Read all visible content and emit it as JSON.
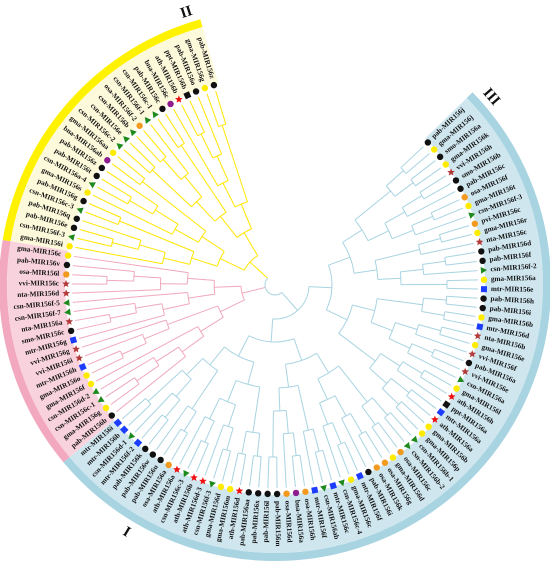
{
  "figure": {
    "title": "",
    "type": "circular phylogenetic tree",
    "groups": [
      {
        "id": "I",
        "label": "I",
        "ring_color": "#a8d4e2",
        "branch_color": "#a8d4e2",
        "bg_color": "#cfe6ef"
      },
      {
        "id": "II",
        "label": "II",
        "ring_color": "#f2a9bf",
        "branch_color": "#f0a8bc",
        "bg_color": "#f8d3de"
      },
      {
        "id": "III",
        "label": "III",
        "ring_color": "#fff200",
        "branch_color": "#ffe600",
        "bg_color": "#fdfadb"
      }
    ],
    "marker_legend": {
      "pab": {
        "shape": "circle",
        "color": "#111111"
      },
      "gma": {
        "shape": "circle",
        "color": "#ffeb00"
      },
      "osa": {
        "shape": "circle",
        "color": "#f29a1f"
      },
      "ath": {
        "shape": "star",
        "color": "#ee1111"
      },
      "csn": {
        "shape": "triangle",
        "color": "#1e8a1e"
      },
      "mtr": {
        "shape": "square",
        "color": "#1c3dff"
      },
      "bna": {
        "shape": "circle",
        "color": "#8e1c8e"
      },
      "vvi": {
        "shape": "star",
        "color": "#b23a3a"
      },
      "nta": {
        "shape": "star",
        "color": "#b23a3a"
      },
      "ppt": {
        "shape": "square",
        "color": "#111111"
      },
      "smo": {
        "shape": "circle",
        "color": "#111111"
      },
      "pvi": {
        "shape": "circle",
        "color": "#f29a1f"
      }
    },
    "leaves": [
      {
        "label": "pab-MIR156j",
        "group": "I"
      },
      {
        "label": "gma-MIR156j",
        "group": "I"
      },
      {
        "label": "smo-MIR156a",
        "group": "I"
      },
      {
        "label": "gma-MIR156k",
        "group": "I"
      },
      {
        "label": "vvi-MIR156h",
        "group": "I"
      },
      {
        "label": "smo-MIR156b",
        "group": "I"
      },
      {
        "label": "pab-MIR156c",
        "group": "I"
      },
      {
        "label": "osa-MIR156f",
        "group": "I"
      },
      {
        "label": "gma-MIR156t",
        "group": "I"
      },
      {
        "label": "csn-MIR156f-3",
        "group": "I"
      },
      {
        "label": "pvi-MIR156c",
        "group": "I"
      },
      {
        "label": "gma-MIR156r",
        "group": "I"
      },
      {
        "label": "nta-MIR156c",
        "group": "I"
      },
      {
        "label": "pab-MIR156d",
        "group": "I"
      },
      {
        "label": "pab-MIR156f",
        "group": "I"
      },
      {
        "label": "csn-MIR156f-2",
        "group": "I"
      },
      {
        "label": "gma-MIR156a",
        "group": "I"
      },
      {
        "label": "mtr-MIR156e",
        "group": "I"
      },
      {
        "label": "pab-MIR156h",
        "group": "I"
      },
      {
        "label": "pab-MIR156i",
        "group": "I"
      },
      {
        "label": "gma-MIR156b",
        "group": "I"
      },
      {
        "label": "mtr-MIR156d",
        "group": "I"
      },
      {
        "label": "nta-MIR156b",
        "group": "I"
      },
      {
        "label": "gma-MIR156e",
        "group": "I"
      },
      {
        "label": "vvi-MIR156f",
        "group": "I"
      },
      {
        "label": "pab-MIR156a",
        "group": "I"
      },
      {
        "label": "vvi-MIR156e",
        "group": "I"
      },
      {
        "label": "csn-MIR156a",
        "group": "I"
      },
      {
        "label": "gma-MIR156l",
        "group": "I"
      },
      {
        "label": "ath-MIR156h",
        "group": "I"
      },
      {
        "label": "ppt-MIR156a",
        "group": "I"
      },
      {
        "label": "mtr-MIR156a",
        "group": "I"
      },
      {
        "label": "ath-MIR156a",
        "group": "I"
      },
      {
        "label": "gma-MIR156b",
        "group": "I"
      },
      {
        "label": "gma-MIR156p",
        "group": "I"
      },
      {
        "label": "csn-MIR156b-1",
        "group": "I"
      },
      {
        "label": "csn-MIR156b-2",
        "group": "I"
      },
      {
        "label": "osa-MIR156c",
        "group": "I"
      },
      {
        "label": "gma-MIR156d",
        "group": "I"
      },
      {
        "label": "osa-MIR156g",
        "group": "I"
      },
      {
        "label": "osa-MIR156k",
        "group": "I"
      },
      {
        "label": "pab-MIR156i",
        "group": "I"
      },
      {
        "label": "mtr-MIR156f",
        "group": "I"
      },
      {
        "label": "gma-MIR156c",
        "group": "I"
      },
      {
        "label": "csn-MIR156c-4",
        "group": "I"
      },
      {
        "label": "mtr-MIR156c",
        "group": "I"
      },
      {
        "label": "csn-MIR156ab",
        "group": "I"
      },
      {
        "label": "mtr-MIR156f",
        "group": "I"
      },
      {
        "label": "osa-MIR156h",
        "group": "I"
      },
      {
        "label": "bna-MIR156a",
        "group": "I"
      },
      {
        "label": "osa-MIR156d",
        "group": "I"
      },
      {
        "label": "pab-MIR156m",
        "group": "I"
      },
      {
        "label": "pab-MIR156l",
        "group": "I"
      },
      {
        "label": "pab-MIR156x",
        "group": "I"
      },
      {
        "label": "pab-MIR156aa",
        "group": "I"
      },
      {
        "label": "ath-MIR156d",
        "group": "I"
      },
      {
        "label": "gma-MIR156m",
        "group": "I"
      },
      {
        "label": "gma-MIR156d",
        "group": "I"
      },
      {
        "label": "csn-MIR156f-3",
        "group": "I"
      },
      {
        "label": "ath-MIR156d-3",
        "group": "I"
      },
      {
        "label": "ath-MIR156b",
        "group": "I"
      },
      {
        "label": "csn-MIR156c-3",
        "group": "I"
      },
      {
        "label": "ath-MIR156a",
        "group": "I"
      },
      {
        "label": "osa-MIR156a",
        "group": "I"
      },
      {
        "label": "pab-MIR156u",
        "group": "I"
      },
      {
        "label": "pab-MIR156w",
        "group": "I"
      },
      {
        "label": "pab-MIR156k",
        "group": "I"
      },
      {
        "label": "mtr-MIR156f-2",
        "group": "I"
      },
      {
        "label": "csn-MIR156d-1",
        "group": "I"
      },
      {
        "label": "mtr-MIR156b",
        "group": "I"
      },
      {
        "label": "mtr-MIR156i",
        "group": "I"
      },
      {
        "label": "pab-MIR156b",
        "group": "II"
      },
      {
        "label": "gma-MIR156g",
        "group": "II"
      },
      {
        "label": "csn-MIR156c-1",
        "group": "II"
      },
      {
        "label": "csn-MIR156d-2",
        "group": "II"
      },
      {
        "label": "gma-MIR156f",
        "group": "II"
      },
      {
        "label": "gma-MIR156o",
        "group": "II"
      },
      {
        "label": "mtr-MIR156h",
        "group": "II"
      },
      {
        "label": "vvi-MIR156i",
        "group": "II"
      },
      {
        "label": "vvi-MIR156g",
        "group": "II"
      },
      {
        "label": "mtr-MIR156g",
        "group": "II"
      },
      {
        "label": "smo-MIR156c",
        "group": "II"
      },
      {
        "label": "nta-MIR156a",
        "group": "II"
      },
      {
        "label": "csn-MIR156f-7",
        "group": "II"
      },
      {
        "label": "csn-MIR156f-5",
        "group": "II"
      },
      {
        "label": "nta-MIR156d",
        "group": "II"
      },
      {
        "label": "vvi-MIR156c",
        "group": "II"
      },
      {
        "label": "osa-MIR156l",
        "group": "II"
      },
      {
        "label": "pab-MIR156v",
        "group": "II"
      },
      {
        "label": "gma-MIR156c",
        "group": "II"
      },
      {
        "label": "gma-MIR156i",
        "group": "III"
      },
      {
        "label": "csn-MIR156f-3",
        "group": "III"
      },
      {
        "label": "pab-MIR156e",
        "group": "III"
      },
      {
        "label": "pab-MIR156q",
        "group": "III"
      },
      {
        "label": "csn-MIR156c-3",
        "group": "III"
      },
      {
        "label": "pab-MIR156g",
        "group": "III"
      },
      {
        "label": "gma-MIR156s",
        "group": "III"
      },
      {
        "label": "csn-MIR156a-4",
        "group": "III"
      },
      {
        "label": "pab-MIR156t",
        "group": "III"
      },
      {
        "label": "pab-MIR156z",
        "group": "III"
      },
      {
        "label": "bna-MIR156ab",
        "group": "III"
      },
      {
        "label": "gma-MIR156aa",
        "group": "III"
      },
      {
        "label": "csn-MIR156c-2",
        "group": "III"
      },
      {
        "label": "csn-MIR156e",
        "group": "III"
      },
      {
        "label": "csn-MIR156b",
        "group": "III"
      },
      {
        "label": "osa-MIR156f-2",
        "group": "III"
      },
      {
        "label": "csn-MIR156f-1",
        "group": "III"
      },
      {
        "label": "csn-MIR156c-1",
        "group": "III"
      },
      {
        "label": "pab-MIR156c",
        "group": "III"
      },
      {
        "label": "bna-MIR156c",
        "group": "III"
      },
      {
        "label": "ath-MIR156b",
        "group": "III"
      },
      {
        "label": "ppt-MIR156b",
        "group": "III"
      },
      {
        "label": "pab-MIR156o",
        "group": "III"
      },
      {
        "label": "gma-MIR156g",
        "group": "III"
      },
      {
        "label": "pab-MIR156z",
        "group": "III"
      }
    ]
  }
}
